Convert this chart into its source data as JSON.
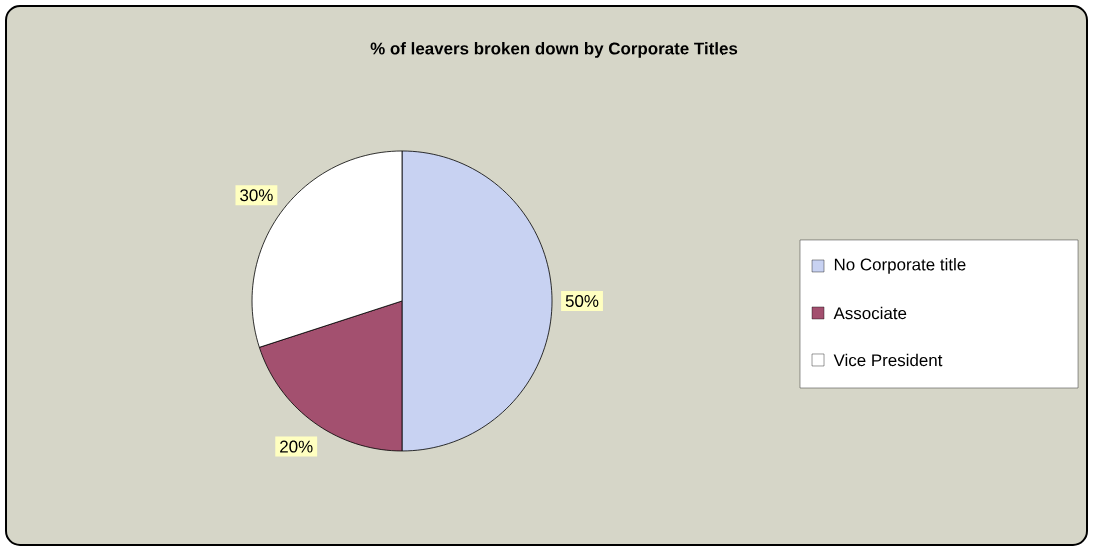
{
  "chart_data": {
    "type": "pie",
    "title": "% of leavers broken down by Corporate Titles",
    "categories": [
      "No Corporate title",
      "Associate",
      "Vice President"
    ],
    "values": [
      50,
      20,
      30
    ],
    "colors": [
      "#c8d2f2",
      "#a3506f",
      "#ffffff"
    ],
    "value_labels": [
      "50%",
      "20%",
      "30%"
    ],
    "legend": "right"
  }
}
